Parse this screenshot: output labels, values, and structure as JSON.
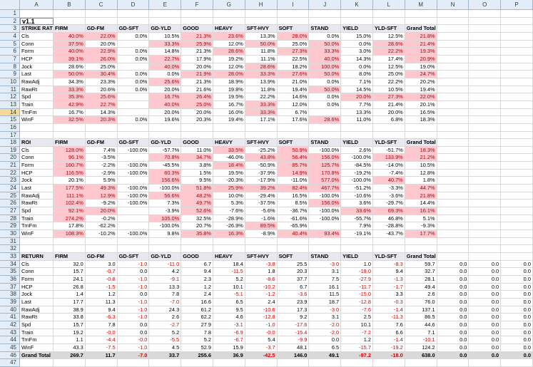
{
  "title": "v1.1",
  "columns": [
    "A",
    "B",
    "C",
    "D",
    "E",
    "F",
    "G",
    "H",
    "I",
    "J",
    "K",
    "L",
    "M",
    "N",
    "O",
    "P"
  ],
  "row_numbers": [
    1,
    2,
    3,
    4,
    5,
    6,
    7,
    8,
    9,
    10,
    11,
    12,
    13,
    14,
    15,
    16,
    17,
    18,
    19,
    20,
    21,
    22,
    23,
    24,
    25,
    26,
    27,
    28,
    29,
    30,
    31,
    32,
    33,
    34,
    35,
    36,
    37,
    38,
    39,
    40,
    41,
    42,
    43,
    44,
    45,
    46,
    47
  ],
  "sections": [
    {
      "label": "STRIKE RATE",
      "headers": [
        "FIRM",
        "GD-FM",
        "GD-SFT",
        "GD-YLD",
        "GOOD",
        "HEAVY",
        "SFT-HVY",
        "SOFT",
        "STAND",
        "YIELD",
        "YLD-SFT",
        "Grand Total"
      ],
      "rows": [
        {
          "label": "Cls",
          "cells": [
            "40.0%",
            "22.0%",
            "0.0%",
            "10.5%",
            "21.3%",
            "23.6%",
            "13.3%",
            "28.0%",
            "0.0%",
            "15.0%",
            "12.5%",
            "21.8%"
          ]
        },
        {
          "label": "Conn",
          "cells": [
            "37.5%",
            "20.0%",
            null,
            "33.3%",
            "25.9%",
            "12.0%",
            "50.0%",
            "25.0%",
            "50.0%",
            "0.0%",
            "28.6%",
            "21.4%"
          ]
        },
        {
          "label": "Form",
          "cells": [
            "40.0%",
            "22.9%",
            "0.0%",
            "14.8%",
            "21.3%",
            "28.6%",
            "11.8%",
            "27.3%",
            "33.3%",
            "3.0%",
            "22.2%",
            "19.3%"
          ]
        },
        {
          "label": "HCP",
          "cells": [
            "39.1%",
            "26.0%",
            "0.0%",
            "22.7%",
            "17.9%",
            "19.2%",
            "11.1%",
            "22.5%",
            "40.0%",
            "14.3%",
            "17.4%",
            "20.9%"
          ]
        },
        {
          "label": "Jock",
          "cells": [
            "28.6%",
            "25.0%",
            null,
            "40.0%",
            "20.0%",
            "12.0%",
            "28.6%",
            "18.2%",
            "100.0%",
            "0.0%",
            "12.5%",
            "19.0%"
          ]
        },
        {
          "label": "Last",
          "cells": [
            "50.0%",
            "30.4%",
            "0.0%",
            "0.0%",
            "21.9%",
            "28.0%",
            "33.3%",
            "27.6%",
            "50.0%",
            "8.0%",
            "25.0%",
            "24.7%"
          ]
        },
        {
          "label": "RawAdj",
          "cells": [
            "34.3%",
            "23.3%",
            "0.0%",
            "25.6%",
            "21.3%",
            "18.9%",
            "13.9%",
            "21.0%",
            "0.0%",
            "7.1%",
            "22.2%",
            "20.2%"
          ]
        },
        {
          "label": "RawRt",
          "cells": [
            "33.3%",
            "20.6%",
            "0.0%",
            "20.0%",
            "21.6%",
            "19.8%",
            "11.8%",
            "19.4%",
            "50.0%",
            "14.5%",
            "10.5%",
            "19.4%"
          ]
        },
        {
          "label": "Spd",
          "cells": [
            "35.3%",
            "25.6%",
            null,
            "16.7%",
            "26.4%",
            "19.5%",
            "22.2%",
            "14.6%",
            "0.0%",
            "20.0%",
            "27.3%",
            "22.0%"
          ]
        },
        {
          "label": "Train",
          "cells": [
            "42.9%",
            "22.7%",
            null,
            "40.0%",
            "25.0%",
            "16.7%",
            "33.3%",
            "12.0%",
            "0.0%",
            "7.7%",
            "21.4%",
            "20.1%"
          ]
        },
        {
          "label": "TrnFm",
          "cells": [
            "16.7%",
            "14.3%",
            null,
            "20.0%",
            "20.0%",
            "16.0%",
            "33.3%",
            "6.7%",
            null,
            "13.3%",
            "20.0%",
            "16.5%"
          ]
        },
        {
          "label": "WinF",
          "cells": [
            "32.5%",
            "20.3%",
            "0.0%",
            "19.6%",
            "20.3%",
            "19.4%",
            "17.1%",
            "17.6%",
            "28.6%",
            "11.0%",
            "6.8%",
            "18.3%"
          ]
        }
      ]
    },
    {
      "label": "ROI",
      "headers": [
        "FIRM",
        "GD-FM",
        "GD-SFT",
        "GD-YLD",
        "GOOD",
        "HEAVY",
        "SFT-HVY",
        "SOFT",
        "STAND",
        "YIELD",
        "YLD-SFT",
        "Grand Total"
      ],
      "rows": [
        {
          "label": "Cls",
          "cells": [
            "128.0%",
            "7.4%",
            "-100.0%",
            "-57.7%",
            "11.0%",
            "33.5%",
            "-25.2%",
            "50.9%",
            "-100.0%",
            "2.6%",
            "-51.7%",
            "18.3%"
          ]
        },
        {
          "label": "Conn",
          "cells": [
            "96.1%",
            "-3.5%",
            null,
            "70.8%",
            "34.7%",
            "-46.0%",
            "43.8%",
            "56.4%",
            "156.0%",
            "-100.0%",
            "133.9%",
            "21.2%"
          ]
        },
        {
          "label": "Form",
          "cells": [
            "160.7%",
            "-2.2%",
            "-100.0%",
            "-45.5%",
            "3.8%",
            "18.4%",
            "-50.9%",
            "85.7%",
            "125.7%",
            "-84.5%",
            "-14.0%",
            "10.5%"
          ]
        },
        {
          "label": "HCP",
          "cells": [
            "116.5%",
            "-2.9%",
            "-100.0%",
            "60.3%",
            "1.5%",
            "19.5%",
            "-37.9%",
            "14.9%",
            "170.8%",
            "-19.2%",
            "-7.4%",
            "12.8%"
          ]
        },
        {
          "label": "Jock",
          "cells": [
            "20.1%",
            "5.9%",
            null,
            "156.6%",
            "9.5%",
            "-20.3%",
            "-17.9%",
            "-11.0%",
            "577.0%",
            "-100.0%",
            "40.7%",
            "1.8%"
          ]
        },
        {
          "label": "Last",
          "cells": [
            "177.5%",
            "49.3%",
            "-100.0%",
            "-100.0%",
            "51.8%",
            "25.9%",
            "39.2%",
            "82.4%",
            "467.7%",
            "-51.2%",
            "-3.3%",
            "44.7%"
          ]
        },
        {
          "label": "RawAdj",
          "cells": [
            "111.1%",
            "12.9%",
            "-100.0%",
            "56.6%",
            "48.2%",
            "10.0%",
            "-29.4%",
            "16.5%",
            "-100.0%",
            "-10.6%",
            "-3.6%",
            "21.8%"
          ]
        },
        {
          "label": "RawRt",
          "cells": [
            "102.4%",
            "-9.2%",
            "-100.0%",
            "7.3%",
            "49.7%",
            "5.3%",
            "-37.5%",
            "8.5%",
            "156.0%",
            "3.6%",
            "-29.7%",
            "14.4%"
          ]
        },
        {
          "label": "Spd",
          "cells": [
            "92.1%",
            "20.0%",
            null,
            "-3.9%",
            "52.6%",
            "-7.6%",
            "-5.6%",
            "-36.7%",
            "-100.0%",
            "33.6%",
            "69.3%",
            "16.1%"
          ]
        },
        {
          "label": "Train",
          "cells": [
            "274.2%",
            "-0.2%",
            null,
            "105.0%",
            "32.5%",
            "-28.9%",
            "-1.6%",
            "-61.6%",
            "-100.0%",
            "-55.7%",
            "46.8%",
            "5.1%"
          ]
        },
        {
          "label": "TrnFm",
          "cells": [
            "17.8%",
            "-62.2%",
            null,
            "-100.0%",
            "20.7%",
            "-26.9%",
            "89.5%",
            "-65.9%",
            null,
            "7.9%",
            "-28.8%",
            "-9.3%"
          ]
        },
        {
          "label": "WinF",
          "cells": [
            "108.3%",
            "-10.2%",
            "-100.0%",
            "9.8%",
            "35.8%",
            "16.3%",
            "-8.9%",
            "40.4%",
            "93.4%",
            "-19.1%",
            "-43.7%",
            "17.7%"
          ]
        }
      ]
    },
    {
      "label": "RETURN",
      "headers": [
        "FIRM",
        "GD-FM",
        "GD-SFT",
        "GD-YLD",
        "GOOD",
        "HEAVY",
        "SFT-HVY",
        "SOFT",
        "STAND",
        "YIELD",
        "YLD-SFT",
        "Grand Total"
      ],
      "rows": [
        {
          "label": "Cls",
          "cells": [
            "32.0",
            "3.0",
            "-1.0",
            "-11.0",
            "6.7",
            "18.4",
            "-3.8",
            "25.5",
            "-3.0",
            "1.0",
            "-8.3",
            "59.7",
            "0.0",
            "0.0",
            "0.0"
          ]
        },
        {
          "label": "Conn",
          "cells": [
            "15.7",
            "-0.7",
            "0.0",
            "4.2",
            "9.4",
            "-11.5",
            "1.8",
            "20.3",
            "3.1",
            "-19.0",
            "9.4",
            "32.7",
            "0.0",
            "0.0",
            "0.0"
          ]
        },
        {
          "label": "Form",
          "cells": [
            "24.1",
            "-0.8",
            "-1.0",
            "-9.1",
            "2.3",
            "5.2",
            "-8.6",
            "37.7",
            "7.5",
            "-27.9",
            "-1.3",
            "28.1",
            "0.0",
            "0.0",
            "0.0"
          ]
        },
        {
          "label": "HCP",
          "cells": [
            "26.8",
            "-1.5",
            "-1.0",
            "13.3",
            "1.2",
            "10.1",
            "-10.2",
            "6.7",
            "16.1",
            "-11.7",
            "-1.7",
            "49.4",
            "0.0",
            "0.0",
            "0.0"
          ]
        },
        {
          "label": "Jock",
          "cells": [
            "1.4",
            "1.2",
            "0.0",
            "7.8",
            "2.4",
            "-5.1",
            "-1.2",
            "-3.6",
            "11.5",
            "-15.0",
            "3.3",
            "2.6",
            "0.0",
            "0.0",
            "0.0"
          ]
        },
        {
          "label": "Last",
          "cells": [
            "17.7",
            "11.3",
            "-1.0",
            "-7.0",
            "16.6",
            "6.5",
            "2.4",
            "23.9",
            "18.7",
            "-12.8",
            "-0.3",
            "76.0",
            "0.0",
            "0.0",
            "0.0"
          ]
        },
        {
          "label": "RawAdj",
          "cells": [
            "38.9",
            "9.4",
            "-1.0",
            "24.3",
            "61.2",
            "9.5",
            "-10.6",
            "17.3",
            "-3.0",
            "-7.6",
            "-1.4",
            "137.1",
            "0.0",
            "0.0",
            "0.0"
          ]
        },
        {
          "label": "RawRt",
          "cells": [
            "33.8",
            "-6.3",
            "-1.0",
            "2.6",
            "62.2",
            "4.6",
            "-12.8",
            "9.2",
            "3.1",
            "2.5",
            "-11.3",
            "86.5",
            "0.0",
            "0.0",
            "0.0"
          ]
        },
        {
          "label": "Spd",
          "cells": [
            "15.7",
            "7.8",
            "0.0",
            "-2.7",
            "27.9",
            "-3.1",
            "-1.0",
            "-17.6",
            "-2.0",
            "10.1",
            "7.6",
            "44.6",
            "0.0",
            "0.0",
            "0.0"
          ]
        },
        {
          "label": "Train",
          "cells": [
            "19.2",
            "-0.0",
            "0.0",
            "5.2",
            "7.8",
            "-6.9",
            "-0.0",
            "-15.4",
            "-2.0",
            "-7.2",
            "6.6",
            "7.1",
            "0.0",
            "0.0",
            "0.0"
          ]
        },
        {
          "label": "TrnFm",
          "cells": [
            "1.1",
            "-4.4",
            "-0.0",
            "-5.5",
            "5.2",
            "-6.7",
            "5.4",
            "-9.9",
            "0.0",
            "1.2",
            "-1.4",
            "-10.1",
            "0.0",
            "0.0",
            "0.0"
          ]
        },
        {
          "label": "WinF",
          "cells": [
            "43.3",
            "-7.5",
            "-1.0",
            "4.5",
            "52.9",
            "15.9",
            "-3.7",
            "48.1",
            "6.5",
            "-15.7",
            "-19.2",
            "124.2",
            "0.0",
            "0.0",
            "0.0"
          ]
        },
        {
          "label": "Grand Total",
          "cells": [
            "269.7",
            "11.7",
            "-7.0",
            "33.7",
            "255.6",
            "36.9",
            "-42.5",
            "146.0",
            "49.1",
            "-97.2",
            "-18.0",
            "638.0",
            "0.0",
            "0.0",
            "0.0"
          ]
        }
      ]
    }
  ]
}
